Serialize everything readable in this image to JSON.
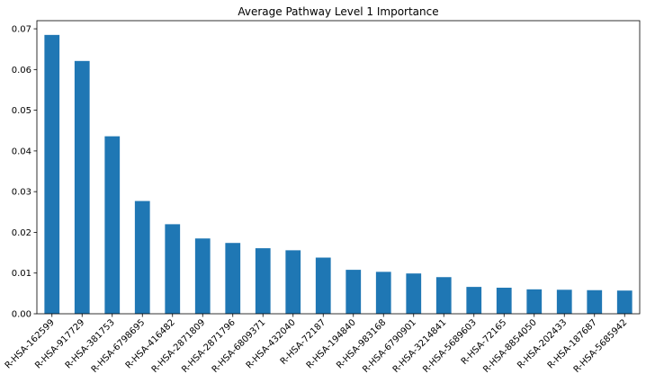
{
  "chart_data": {
    "type": "bar",
    "title": "Average Pathway Level 1 Importance",
    "xlabel": "",
    "ylabel": "",
    "ylim": [
      0,
      0.072
    ],
    "yticks": [
      "0.00",
      "0.01",
      "0.02",
      "0.03",
      "0.04",
      "0.05",
      "0.06",
      "0.07"
    ],
    "ytick_values": [
      0,
      0.01,
      0.02,
      0.03,
      0.04,
      0.05,
      0.06,
      0.07
    ],
    "grid": false,
    "legend": "none",
    "bar_color": "#1f77b4",
    "categories": [
      "R-HSA-162599",
      "R-HSA-917729",
      "R-HSA-381753",
      "R-HSA-6798695",
      "R-HSA-416482",
      "R-HSA-2871809",
      "R-HSA-2871796",
      "R-HSA-6809371",
      "R-HSA-432040",
      "R-HSA-72187",
      "R-HSA-194840",
      "R-HSA-983168",
      "R-HSA-6790901",
      "R-HSA-3214841",
      "R-HSA-5689603",
      "R-HSA-72165",
      "R-HSA-8854050",
      "R-HSA-202433",
      "R-HSA-187687",
      "R-HSA-5685942"
    ],
    "values": [
      0.0685,
      0.0621,
      0.0436,
      0.0277,
      0.022,
      0.0185,
      0.0174,
      0.0161,
      0.0156,
      0.0138,
      0.0108,
      0.0103,
      0.0099,
      0.009,
      0.0066,
      0.0064,
      0.006,
      0.0059,
      0.0058,
      0.0057
    ]
  }
}
